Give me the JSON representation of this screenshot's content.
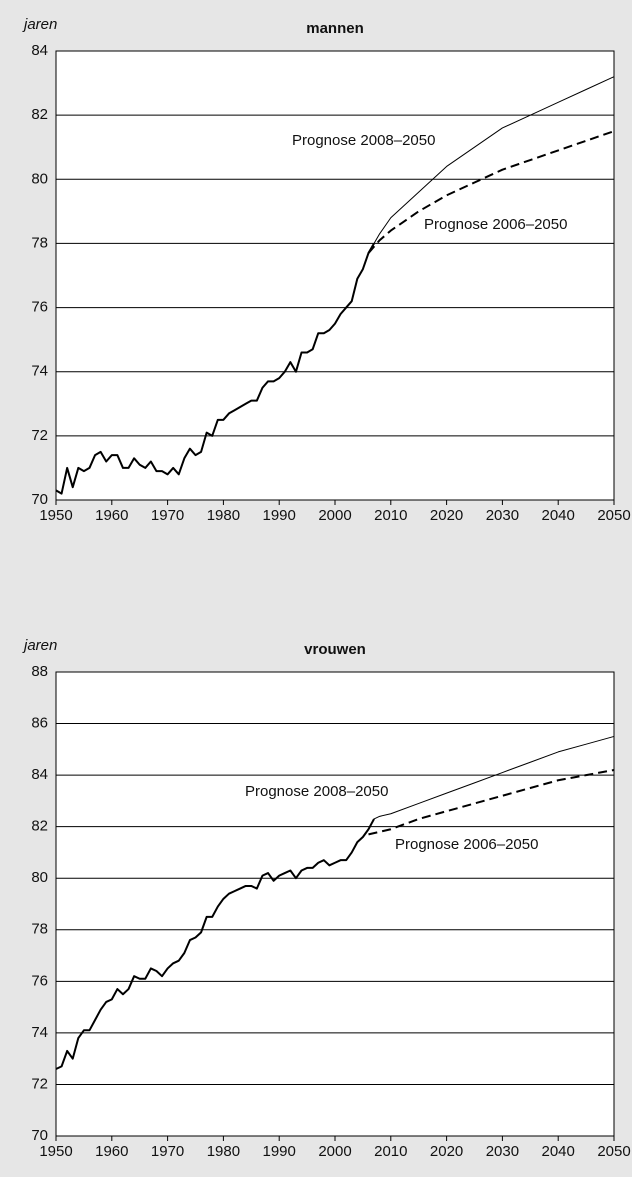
{
  "chart_data": [
    {
      "type": "line",
      "title": "mannen",
      "y_label": "jaren",
      "xlim": [
        1950,
        2050
      ],
      "xticks": [
        1950,
        1960,
        1970,
        1980,
        1990,
        2000,
        2010,
        2020,
        2030,
        2040,
        2050
      ],
      "ylim": [
        70,
        84
      ],
      "yticks": [
        70,
        72,
        74,
        76,
        78,
        80,
        82,
        84
      ],
      "grid": true,
      "annotations": [
        "Prognose 2008–2050",
        "Prognose 2006–2050"
      ],
      "series": [
        {
          "color": "#000000",
          "line_width": 2,
          "dashed": false,
          "x": [
            1950,
            1951,
            1952,
            1953,
            1954,
            1955,
            1956,
            1957,
            1958,
            1959,
            1960,
            1961,
            1962,
            1963,
            1964,
            1965,
            1966,
            1967,
            1968,
            1969,
            1970,
            1971,
            1972,
            1973,
            1974,
            1975,
            1976,
            1977,
            1978,
            1979,
            1980,
            1981,
            1982,
            1983,
            1984,
            1985,
            1986,
            1987,
            1988,
            1989,
            1990,
            1991,
            1992,
            1993,
            1994,
            1995,
            1996,
            1997,
            1998,
            1999,
            2000,
            2001,
            2002,
            2003,
            2004,
            2005,
            2006,
            2007
          ],
          "values": [
            70.3,
            70.2,
            71.0,
            70.4,
            71.0,
            70.9,
            71.0,
            71.4,
            71.5,
            71.2,
            71.4,
            71.4,
            71.0,
            71.0,
            71.3,
            71.1,
            71.0,
            71.2,
            70.9,
            70.9,
            70.8,
            71.0,
            70.8,
            71.3,
            71.6,
            71.4,
            71.5,
            72.1,
            72.0,
            72.5,
            72.5,
            72.7,
            72.8,
            72.9,
            73.0,
            73.1,
            73.1,
            73.5,
            73.7,
            73.7,
            73.8,
            74.0,
            74.3,
            74.0,
            74.6,
            74.6,
            74.7,
            75.2,
            75.2,
            75.3,
            75.5,
            75.8,
            76.0,
            76.2,
            76.9,
            77.2,
            77.7,
            78.0
          ]
        },
        {
          "color": "#000000",
          "line_width": 1,
          "dashed": false,
          "x": [
            2007,
            2008,
            2010,
            2015,
            2020,
            2025,
            2030,
            2035,
            2040,
            2045,
            2050
          ],
          "values": [
            78.0,
            78.3,
            78.8,
            79.6,
            80.4,
            81.0,
            81.6,
            82.0,
            82.4,
            82.8,
            83.2
          ]
        },
        {
          "color": "#000000",
          "line_width": 2,
          "dashed": true,
          "x": [
            2006,
            2008,
            2010,
            2015,
            2020,
            2025,
            2030,
            2035,
            2040,
            2045,
            2050
          ],
          "values": [
            77.7,
            78.1,
            78.4,
            79.0,
            79.5,
            79.9,
            80.3,
            80.6,
            80.9,
            81.2,
            81.5
          ]
        }
      ]
    },
    {
      "type": "line",
      "title": "vrouwen",
      "y_label": "jaren",
      "xlim": [
        1950,
        2050
      ],
      "xticks": [
        1950,
        1960,
        1970,
        1980,
        1990,
        2000,
        2010,
        2020,
        2030,
        2040,
        2050
      ],
      "ylim": [
        70,
        88
      ],
      "yticks": [
        70,
        72,
        74,
        76,
        78,
        80,
        82,
        84,
        86,
        88
      ],
      "grid": true,
      "annotations": [
        "Prognose 2008–2050",
        "Prognose 2006–2050"
      ],
      "series": [
        {
          "color": "#000000",
          "line_width": 2,
          "dashed": false,
          "x": [
            1950,
            1951,
            1952,
            1953,
            1954,
            1955,
            1956,
            1957,
            1958,
            1959,
            1960,
            1961,
            1962,
            1963,
            1964,
            1965,
            1966,
            1967,
            1968,
            1969,
            1970,
            1971,
            1972,
            1973,
            1974,
            1975,
            1976,
            1977,
            1978,
            1979,
            1980,
            1981,
            1982,
            1983,
            1984,
            1985,
            1986,
            1987,
            1988,
            1989,
            1990,
            1991,
            1992,
            1993,
            1994,
            1995,
            1996,
            1997,
            1998,
            1999,
            2000,
            2001,
            2002,
            2003,
            2004,
            2005,
            2006,
            2007
          ],
          "values": [
            72.6,
            72.7,
            73.3,
            73.0,
            73.8,
            74.1,
            74.1,
            74.5,
            74.9,
            75.2,
            75.3,
            75.7,
            75.5,
            75.7,
            76.2,
            76.1,
            76.1,
            76.5,
            76.4,
            76.2,
            76.5,
            76.7,
            76.8,
            77.1,
            77.6,
            77.7,
            77.9,
            78.5,
            78.5,
            78.9,
            79.2,
            79.4,
            79.5,
            79.6,
            79.7,
            79.7,
            79.6,
            80.1,
            80.2,
            79.9,
            80.1,
            80.2,
            80.3,
            80.0,
            80.3,
            80.4,
            80.4,
            80.6,
            80.7,
            80.5,
            80.6,
            80.7,
            80.7,
            81.0,
            81.4,
            81.6,
            81.9,
            82.3
          ]
        },
        {
          "color": "#000000",
          "line_width": 1,
          "dashed": false,
          "x": [
            2007,
            2008,
            2010,
            2015,
            2020,
            2025,
            2030,
            2035,
            2040,
            2045,
            2050
          ],
          "values": [
            82.3,
            82.4,
            82.5,
            82.9,
            83.3,
            83.7,
            84.1,
            84.5,
            84.9,
            85.2,
            85.5
          ]
        },
        {
          "color": "#000000",
          "line_width": 2,
          "dashed": true,
          "x": [
            2006,
            2010,
            2015,
            2020,
            2025,
            2030,
            2035,
            2040,
            2045,
            2050
          ],
          "values": [
            81.7,
            81.9,
            82.3,
            82.6,
            82.9,
            83.2,
            83.5,
            83.8,
            84.0,
            84.2
          ]
        }
      ]
    }
  ]
}
